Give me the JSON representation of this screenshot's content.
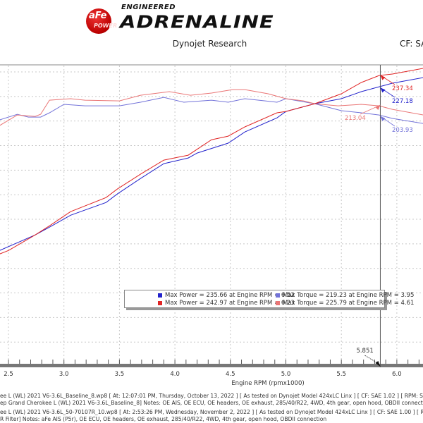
{
  "header": {
    "logo_brand": "aFe",
    "logo_sub": "POWER",
    "logo_tagline": "ENGINEERED",
    "logo_title": "ADRENALINE",
    "subtitle": "Dynojet Research",
    "cf_label": "CF: SA"
  },
  "colors": {
    "power_baseline": "#2222cc",
    "power_afe": "#e02424",
    "torque_baseline": "#7373d9",
    "torque_afe": "#ea7676",
    "grid": "#c8c8c8",
    "axis": "#777777"
  },
  "chart_data": {
    "type": "line",
    "xlabel": "Engine RPM (rpmx1000)",
    "ylabel": "",
    "xlim": [
      2.42,
      6.24
    ],
    "ylim": [
      0,
      245
    ],
    "x_ticks": [
      "2.5",
      "3.0",
      "3.5",
      "4.0",
      "4.5",
      "5.0",
      "5.5",
      "6.0"
    ],
    "grid": true,
    "cursor": {
      "x": 5.851,
      "label": "5.851"
    },
    "series": [
      {
        "key": "power_baseline",
        "x": [
          2.42,
          2.74,
          2.87,
          3.06,
          3.38,
          3.48,
          3.69,
          3.9,
          4.12,
          4.2,
          4.48,
          4.63,
          4.92,
          5.0,
          5.26,
          5.5,
          5.68,
          5.84,
          5.96,
          6.24
        ],
        "y": [
          94.6,
          107.2,
          113.6,
          123.3,
          133.7,
          140.6,
          153.2,
          165.3,
          169.9,
          173.9,
          182.0,
          191.1,
          202.6,
          207.8,
          214.1,
          218.2,
          223.9,
          227.9,
          230.8,
          235.4
        ]
      },
      {
        "key": "power_afe",
        "x": [
          2.42,
          2.5,
          2.74,
          2.87,
          3.06,
          3.38,
          3.48,
          3.69,
          3.9,
          4.12,
          4.33,
          4.48,
          4.63,
          4.92,
          5.0,
          5.26,
          5.5,
          5.68,
          5.84,
          5.96,
          6.24
        ],
        "y": [
          91.7,
          94.6,
          107.2,
          114.7,
          126.2,
          137.7,
          144.6,
          156.7,
          168.2,
          172.2,
          184.8,
          187.7,
          195.2,
          206.7,
          207.8,
          214.1,
          222.2,
          231.4,
          237.1,
          238.3,
          242.9
        ]
      },
      {
        "key": "torque_baseline",
        "x": [
          2.42,
          2.58,
          2.68,
          2.79,
          2.87,
          3.0,
          3.19,
          3.5,
          3.69,
          3.9,
          4.08,
          4.33,
          4.48,
          4.63,
          4.92,
          5.0,
          5.26,
          5.5,
          5.68,
          5.84,
          5.96,
          6.24
        ],
        "y": [
          200.9,
          205.5,
          203.2,
          203.2,
          206.7,
          213.6,
          212.4,
          212.4,
          215.3,
          219.3,
          215.3,
          217.0,
          215.3,
          218.2,
          215.3,
          218.2,
          214.1,
          208.4,
          206.7,
          204.9,
          202.1,
          198.0
        ]
      },
      {
        "key": "torque_afe",
        "x": [
          2.42,
          2.58,
          2.74,
          2.79,
          2.87,
          3.06,
          3.19,
          3.5,
          3.69,
          3.95,
          4.14,
          4.33,
          4.52,
          4.63,
          4.84,
          5.0,
          5.16,
          5.26,
          5.47,
          5.68,
          5.84,
          5.96,
          6.24
        ],
        "y": [
          196.3,
          204.9,
          203.8,
          205.5,
          217.0,
          218.2,
          217.0,
          216.4,
          221.0,
          223.9,
          221.0,
          222.8,
          225.6,
          225.6,
          222.2,
          218.2,
          216.4,
          214.1,
          212.4,
          213.6,
          212.4,
          209.5,
          204.9
        ]
      }
    ],
    "annotations": [
      {
        "series": "power_afe",
        "x": 5.851,
        "value": 237.34,
        "label": "237.34"
      },
      {
        "series": "power_baseline",
        "x": 5.851,
        "value": 227.18,
        "label": "227.18"
      },
      {
        "series": "torque_afe",
        "x": 5.851,
        "value": 213.04,
        "label": "213.04"
      },
      {
        "series": "torque_baseline",
        "x": 5.851,
        "value": 203.93,
        "label": "203.93"
      }
    ],
    "legend": {
      "placement": "bottom-center",
      "rows": [
        [
          "Max Power = 235.66 at Engine RPM = 6.52",
          "Max Torque = 219.23 at Engine RPM = 3.95"
        ],
        [
          "Max Power = 242.97 at Engine RPM = 6.23",
          "Max Torque = 225.79 at Engine RPM = 4.61"
        ]
      ]
    }
  },
  "notes": [
    "ee L (WL) 2021 V6-3.6L_Baseline_8.wp8 [ At: 12:07:01 PM, Thursday, October 13, 2022 ] [ As tested on Dynojet Model 424xLC Linx ] [ CF: SAE 1.02 ] [ RPM: SW Defined ] [ AFR S",
    "ep Grand Cherokee L (WL) 2021 V6-3.6L_Baseline_8]  Notes: OE AIS, OE ECU, OE headers, OE exhaust, 285/40/R22, 4WD, 4th gear, open hood, OBDII connection",
    "ee L (WL) 2021 V6-3.6L_50-70107R_10.wp8 [ At: 2:53:26 PM, Wednesday, November 2, 2022 ] [ As tested on Dynojet Model 424xLC Linx ] [ CF: SAE 1.00 ] [ RPM: OBD2 ] [ AFR S",
    "R Filter]  Notes: aFe AIS (P5r), OE ECU, OE headers, OE exhaust, 285/40/R22, 4WD, 4th gear, open hood, OBDII connection"
  ]
}
